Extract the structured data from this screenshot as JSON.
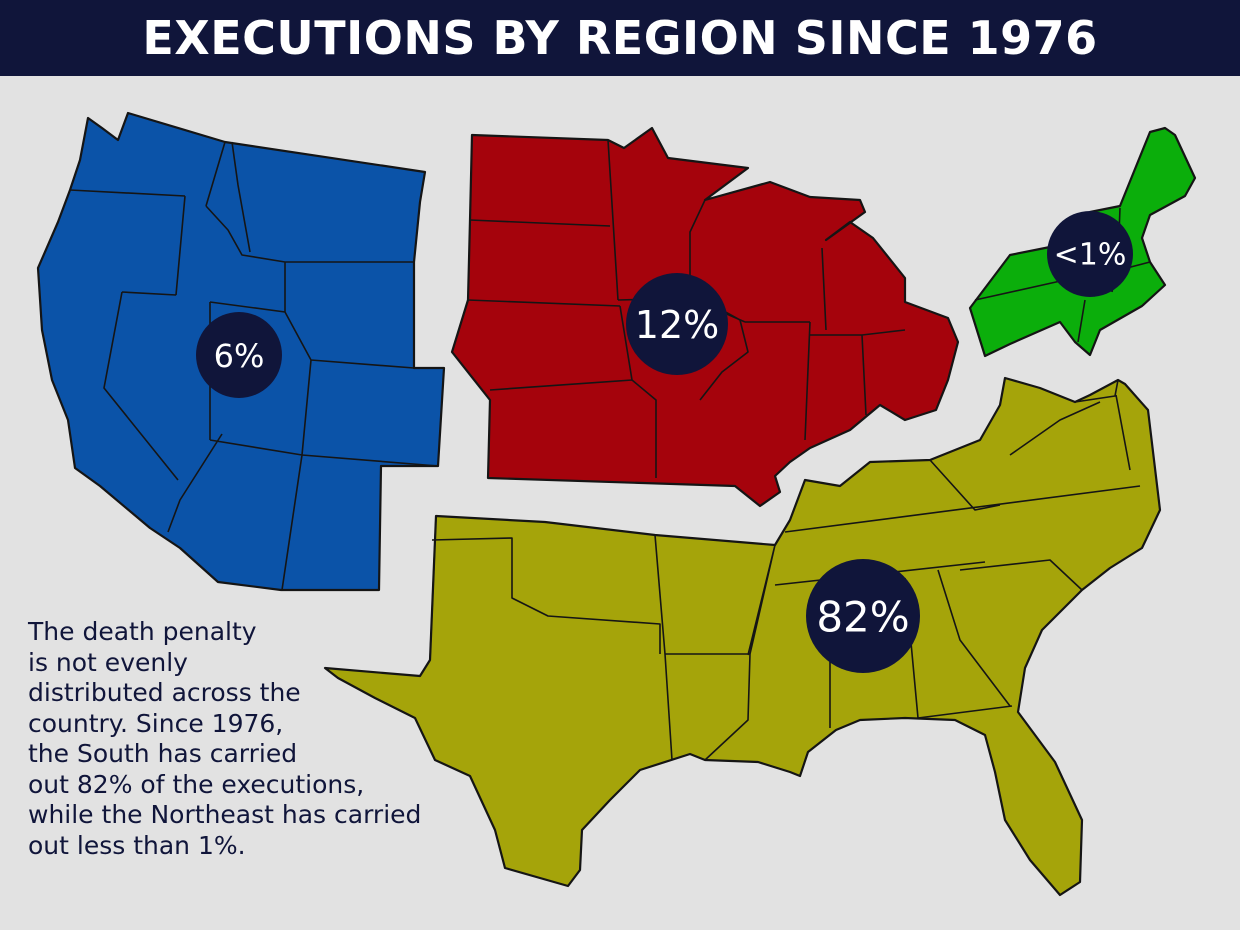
{
  "header": {
    "title": "EXECUTIONS BY REGION SINCE 1976"
  },
  "regions": [
    {
      "id": "west",
      "label": "6%",
      "color": "#0b53a8"
    },
    {
      "id": "midwest",
      "label": "12%",
      "color": "#a5030c"
    },
    {
      "id": "northeast",
      "label": "<1%",
      "color": "#0bae0b"
    },
    {
      "id": "south",
      "label": "82%",
      "color": "#a5a40a"
    }
  ],
  "caption": {
    "text": "The death penalty\nis not evenly\ndistributed across the\ncountry.  Since 1976,\nthe South has carried\nout 82% of the executions,\nwhile the Northeast has carried\nout less than 1%."
  },
  "colors": {
    "banner": "#10153a",
    "badge": "#10153a",
    "background": "#e2e2e2"
  }
}
